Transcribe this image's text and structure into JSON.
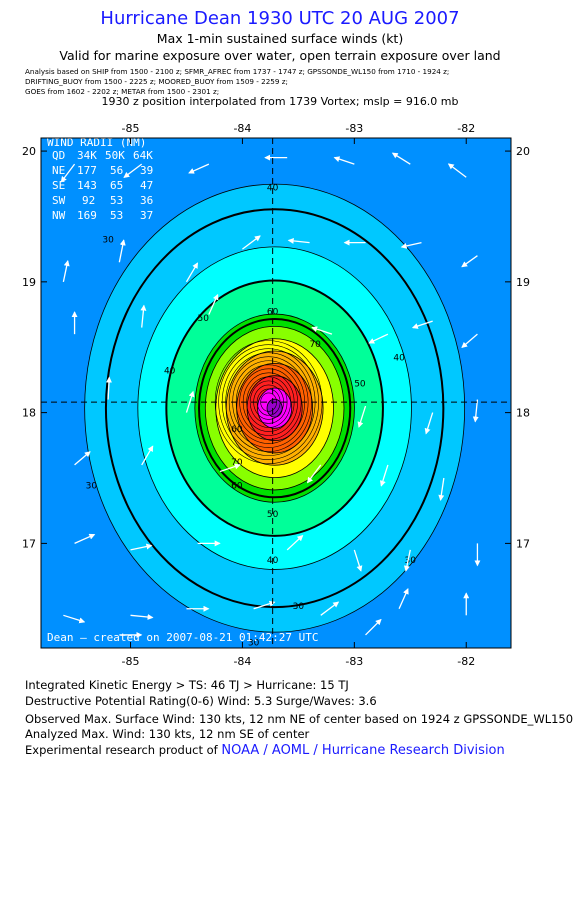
{
  "header": {
    "title": "Hurricane Dean 1930 UTC 20 AUG 2007",
    "subtitle": "Max 1-min sustained surface winds (kt)",
    "valid": "Valid for marine exposure over water, open terrain exposure over land",
    "analysis_lines": [
      "Analysis based on  SHIP from 1500 - 2100 z;  SFMR_AFREC from 1737 - 1747 z;  GPSSONDE_WL150 from 1710 - 1924 z;",
      "DRIFTING_BUOY from 1500 - 2225 z;   MOORED_BUOY from 1509 - 2259 z;",
      "GOES from 1602 - 2202 z;   METAR from 1500 - 2301 z;"
    ],
    "interpolation": "1930 z position interpolated from 1739 Vortex; mslp = 916.0 mb"
  },
  "chart_data": {
    "type": "heatmap",
    "title": "Hurricane Dean 1930 UTC 20 AUG 2007",
    "xlabel": "",
    "ylabel": "",
    "xlim": [
      -85.8,
      -81.6
    ],
    "ylim": [
      16.2,
      20.1
    ],
    "x_ticks": [
      -85,
      -84,
      -83,
      -82
    ],
    "y_ticks": [
      17,
      18,
      19,
      20
    ],
    "x_tick_labels": [
      "-85",
      "-84",
      "-83",
      "-82"
    ],
    "y_tick_labels": [
      "17",
      "18",
      "19",
      "20"
    ],
    "center": {
      "lon": -83.73,
      "lat": 18.08
    },
    "contour_levels_kt": [
      30,
      40,
      50,
      60,
      70,
      80,
      90,
      100,
      110,
      120,
      130
    ],
    "thick_contours_kt": [
      34,
      50,
      64
    ],
    "contour_labels": [
      {
        "text": "40",
        "lon": -83.73,
        "lat": 19.7
      },
      {
        "text": "30",
        "lon": -85.2,
        "lat": 19.3
      },
      {
        "text": "50",
        "lon": -84.35,
        "lat": 18.7
      },
      {
        "text": "60",
        "lon": -83.73,
        "lat": 18.75
      },
      {
        "text": "70",
        "lon": -83.35,
        "lat": 18.5
      },
      {
        "text": "40",
        "lon": -84.65,
        "lat": 18.3
      },
      {
        "text": "40",
        "lon": -82.6,
        "lat": 18.4
      },
      {
        "text": "50",
        "lon": -82.95,
        "lat": 18.2
      },
      {
        "text": "60",
        "lon": -84.05,
        "lat": 17.85
      },
      {
        "text": "70",
        "lon": -84.05,
        "lat": 17.6
      },
      {
        "text": "60",
        "lon": -84.05,
        "lat": 17.42
      },
      {
        "text": "50",
        "lon": -83.73,
        "lat": 17.2
      },
      {
        "text": "30",
        "lon": -85.35,
        "lat": 17.42
      },
      {
        "text": "40",
        "lon": -83.73,
        "lat": 16.85
      },
      {
        "text": "30",
        "lon": -82.5,
        "lat": 16.85
      },
      {
        "text": "30",
        "lon": -83.5,
        "lat": 16.5
      },
      {
        "text": "30",
        "lon": -83.9,
        "lat": 16.22
      }
    ],
    "wind_radii": {
      "header": "WIND RADII (NM)",
      "columns": [
        "QD",
        "34K",
        "50K",
        "64K"
      ],
      "rows": [
        [
          "NE",
          "177",
          "56",
          "39"
        ],
        [
          "SE",
          "143",
          "65",
          "47"
        ],
        [
          "SW",
          "92",
          "53",
          "36"
        ],
        [
          "NW",
          "169",
          "53",
          "37"
        ]
      ]
    },
    "credit": "Dean — created on 2007-08-21 01:42:27 UTC",
    "vectors": [
      {
        "lon": -85.5,
        "lat": 19.9,
        "u": -0.6,
        "v": -0.8
      },
      {
        "lon": -84.9,
        "lat": 19.9,
        "u": -0.8,
        "v": -0.6
      },
      {
        "lon": -84.3,
        "lat": 19.9,
        "u": -0.9,
        "v": -0.4
      },
      {
        "lon": -83.6,
        "lat": 19.95,
        "u": -1.0,
        "v": 0.0
      },
      {
        "lon": -83.0,
        "lat": 19.9,
        "u": -0.9,
        "v": 0.3
      },
      {
        "lon": -82.5,
        "lat": 19.9,
        "u": -0.8,
        "v": 0.5
      },
      {
        "lon": -82.0,
        "lat": 19.8,
        "u": -0.8,
        "v": 0.6
      },
      {
        "lon": -85.6,
        "lat": 19.0,
        "u": 0.2,
        "v": 0.95
      },
      {
        "lon": -85.1,
        "lat": 19.15,
        "u": 0.2,
        "v": 1.0
      },
      {
        "lon": -84.5,
        "lat": 19.0,
        "u": 0.5,
        "v": 0.85
      },
      {
        "lon": -84.0,
        "lat": 19.25,
        "u": 0.8,
        "v": 0.6
      },
      {
        "lon": -83.4,
        "lat": 19.3,
        "u": -0.95,
        "v": 0.1
      },
      {
        "lon": -82.9,
        "lat": 19.3,
        "u": -0.95,
        "v": 0.0
      },
      {
        "lon": -82.4,
        "lat": 19.3,
        "u": -0.9,
        "v": -0.2
      },
      {
        "lon": -81.9,
        "lat": 19.2,
        "u": -0.7,
        "v": -0.5
      },
      {
        "lon": -85.5,
        "lat": 18.6,
        "u": 0.0,
        "v": 1.0
      },
      {
        "lon": -84.9,
        "lat": 18.65,
        "u": 0.1,
        "v": 1.0
      },
      {
        "lon": -84.3,
        "lat": 18.75,
        "u": 0.4,
        "v": 0.9
      },
      {
        "lon": -83.2,
        "lat": 18.6,
        "u": -0.9,
        "v": 0.3
      },
      {
        "lon": -82.7,
        "lat": 18.6,
        "u": -0.85,
        "v": -0.4
      },
      {
        "lon": -82.3,
        "lat": 18.7,
        "u": -0.9,
        "v": -0.3
      },
      {
        "lon": -81.9,
        "lat": 18.6,
        "u": -0.7,
        "v": -0.6
      },
      {
        "lon": -85.2,
        "lat": 18.1,
        "u": 0.05,
        "v": 1.0
      },
      {
        "lon": -84.5,
        "lat": 18.0,
        "u": 0.3,
        "v": 0.95
      },
      {
        "lon": -82.9,
        "lat": 18.05,
        "u": -0.3,
        "v": -0.95
      },
      {
        "lon": -82.3,
        "lat": 18.0,
        "u": -0.3,
        "v": -0.95
      },
      {
        "lon": -81.9,
        "lat": 18.1,
        "u": -0.1,
        "v": -1.0
      },
      {
        "lon": -85.5,
        "lat": 17.6,
        "u": 0.7,
        "v": 0.6
      },
      {
        "lon": -84.9,
        "lat": 17.6,
        "u": 0.5,
        "v": 0.85
      },
      {
        "lon": -84.2,
        "lat": 17.55,
        "u": 0.9,
        "v": 0.3
      },
      {
        "lon": -83.3,
        "lat": 17.6,
        "u": -0.6,
        "v": -0.8
      },
      {
        "lon": -82.7,
        "lat": 17.6,
        "u": -0.3,
        "v": -0.95
      },
      {
        "lon": -82.2,
        "lat": 17.5,
        "u": -0.15,
        "v": -1.0
      },
      {
        "lon": -85.5,
        "lat": 17.0,
        "u": 0.9,
        "v": 0.4
      },
      {
        "lon": -85.0,
        "lat": 16.95,
        "u": 0.95,
        "v": 0.2
      },
      {
        "lon": -84.4,
        "lat": 17.0,
        "u": 1.0,
        "v": 0.0
      },
      {
        "lon": -83.6,
        "lat": 16.95,
        "u": 0.7,
        "v": 0.65
      },
      {
        "lon": -83.0,
        "lat": 16.95,
        "u": 0.3,
        "v": -0.95
      },
      {
        "lon": -82.5,
        "lat": 16.95,
        "u": -0.2,
        "v": -0.95
      },
      {
        "lon": -81.9,
        "lat": 17.0,
        "u": 0.0,
        "v": -1.0
      },
      {
        "lon": -85.6,
        "lat": 16.45,
        "u": 0.95,
        "v": -0.3
      },
      {
        "lon": -85.0,
        "lat": 16.45,
        "u": 1.0,
        "v": -0.1
      },
      {
        "lon": -84.5,
        "lat": 16.5,
        "u": 1.0,
        "v": 0.0
      },
      {
        "lon": -83.9,
        "lat": 16.5,
        "u": 0.95,
        "v": 0.3
      },
      {
        "lon": -83.3,
        "lat": 16.45,
        "u": 0.8,
        "v": 0.6
      },
      {
        "lon": -82.6,
        "lat": 16.5,
        "u": 0.4,
        "v": 0.9
      },
      {
        "lon": -82.0,
        "lat": 16.45,
        "u": 0.0,
        "v": 1.0
      },
      {
        "lon": -85.1,
        "lat": 16.3,
        "u": 1.0,
        "v": 0.0
      },
      {
        "lon": -82.9,
        "lat": 16.3,
        "u": 0.7,
        "v": 0.7
      }
    ]
  },
  "footer": {
    "ike": "Integrated Kinetic Energy > TS: 46 TJ   > Hurricane: 15 TJ",
    "dp": "Destructive Potential Rating(0-6)   Wind: 5.3 Surge/Waves: 3.6",
    "obs": "Observed Max. Surface Wind: 130 kts, 12 nm NE of center based on 1924 z GPSSONDE_WL150",
    "ana": "Analyzed Max. Wind: 130 kts, 12 nm SE of center",
    "credit_prefix": "Experimental research product of ",
    "credit_org": "NOAA / AOML / Hurricane Research Division"
  },
  "colors": {
    "title": "#1a1aff",
    "frame": "#000000",
    "vector": "#ffffff"
  }
}
